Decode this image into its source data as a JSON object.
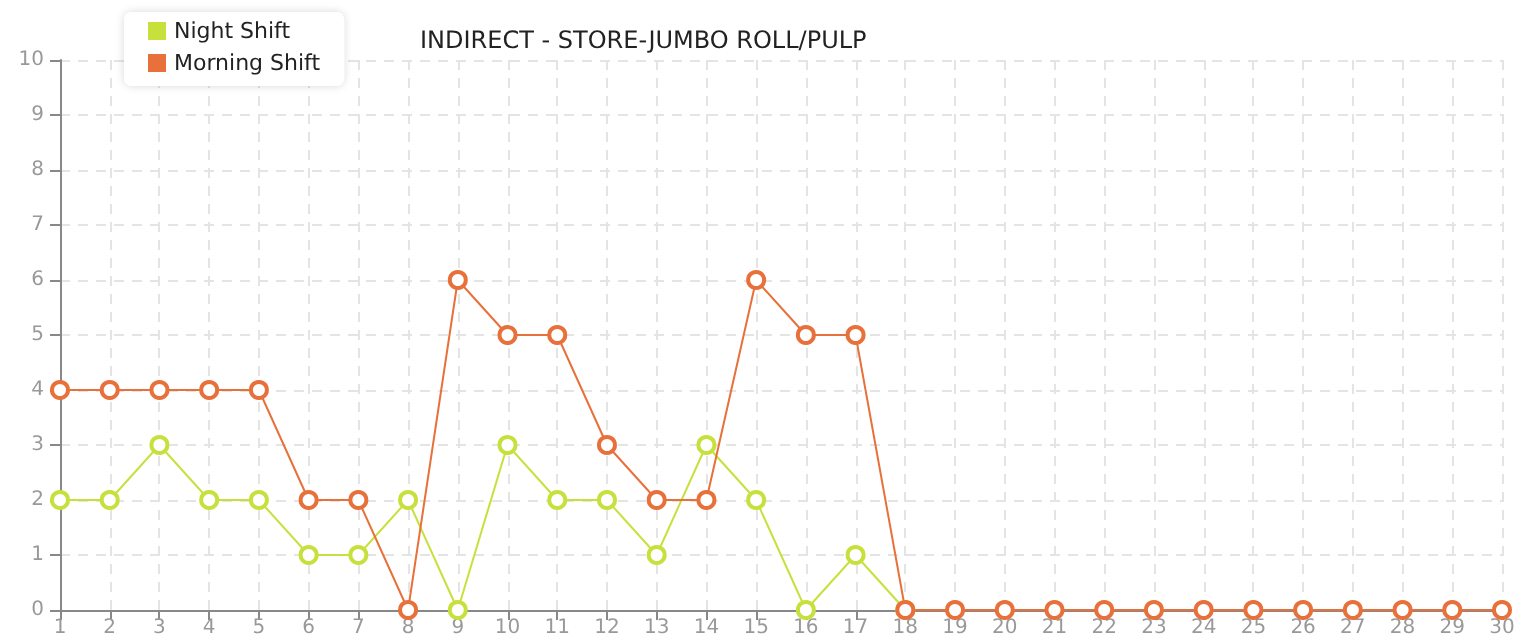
{
  "chart_data": {
    "type": "line",
    "title": "INDIRECT - STORE-JUMBO ROLL/PULP",
    "x": [
      1,
      2,
      3,
      4,
      5,
      6,
      7,
      8,
      9,
      10,
      11,
      12,
      13,
      14,
      15,
      16,
      17,
      18,
      19,
      20,
      21,
      22,
      23,
      24,
      25,
      26,
      27,
      28,
      29,
      30
    ],
    "series": [
      {
        "name": "Night Shift",
        "color": "#c8e03c",
        "values": [
          2,
          2,
          3,
          2,
          2,
          1,
          1,
          2,
          0,
          3,
          2,
          2,
          1,
          3,
          2,
          0,
          1,
          0,
          null,
          null,
          null,
          null,
          null,
          null,
          null,
          null,
          null,
          null,
          null,
          null
        ]
      },
      {
        "name": "Morning Shift",
        "color": "#e8703a",
        "values": [
          4,
          4,
          4,
          4,
          4,
          2,
          2,
          0,
          6,
          5,
          5,
          3,
          2,
          2,
          6,
          5,
          5,
          0,
          0,
          0,
          0,
          0,
          0,
          0,
          0,
          0,
          0,
          0,
          0,
          0
        ]
      }
    ],
    "xlim": [
      1,
      30
    ],
    "xticks": [
      1,
      2,
      3,
      4,
      5,
      6,
      7,
      8,
      9,
      10,
      11,
      12,
      13,
      14,
      15,
      16,
      17,
      18,
      19,
      20,
      21,
      22,
      23,
      24,
      25,
      26,
      27,
      28,
      29,
      30
    ],
    "ylim": [
      0,
      10
    ],
    "yticks": [
      0,
      1,
      2,
      3,
      4,
      5,
      6,
      7,
      8,
      9,
      10
    ],
    "grid": true,
    "legend": "top left",
    "marker": "circle",
    "line_style": "solid"
  }
}
